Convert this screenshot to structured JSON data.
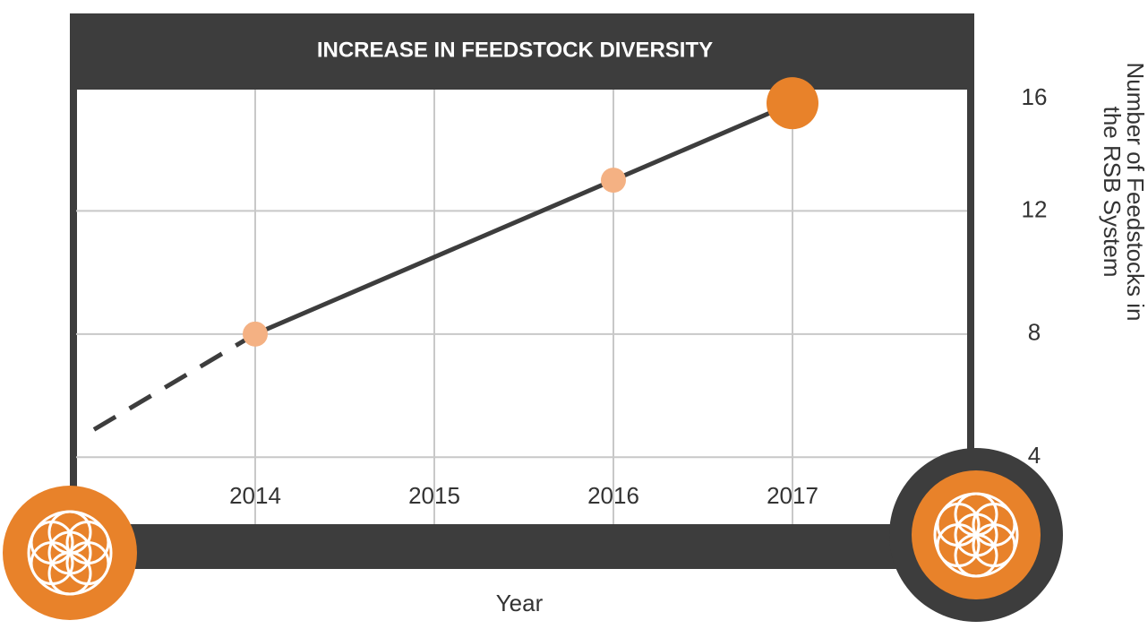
{
  "chart_data": {
    "type": "line",
    "title": "INCREASE IN FEEDSTOCK DIVERSITY",
    "xlabel": "Year",
    "ylabel": "Number of Feedstocks in the RSB System",
    "series": [
      {
        "color": "#3d3d3d",
        "dashed": true,
        "x": [
          2013.1,
          2014
        ],
        "values": [
          4.9,
          8
        ]
      },
      {
        "color": "#3d3d3d",
        "dashed": false,
        "x": [
          2014,
          2016,
          2017
        ],
        "values": [
          8,
          13,
          15.5
        ],
        "marker_colors": [
          "#f4b183",
          "#f4b183",
          "#e8822a"
        ]
      }
    ],
    "xlim": [
      2013,
      2018
    ],
    "xticks": [
      2014,
      2015,
      2016,
      2017
    ],
    "ylim": [
      2,
      16
    ],
    "yticks": [
      4,
      8,
      12,
      16
    ],
    "grid": true
  }
}
